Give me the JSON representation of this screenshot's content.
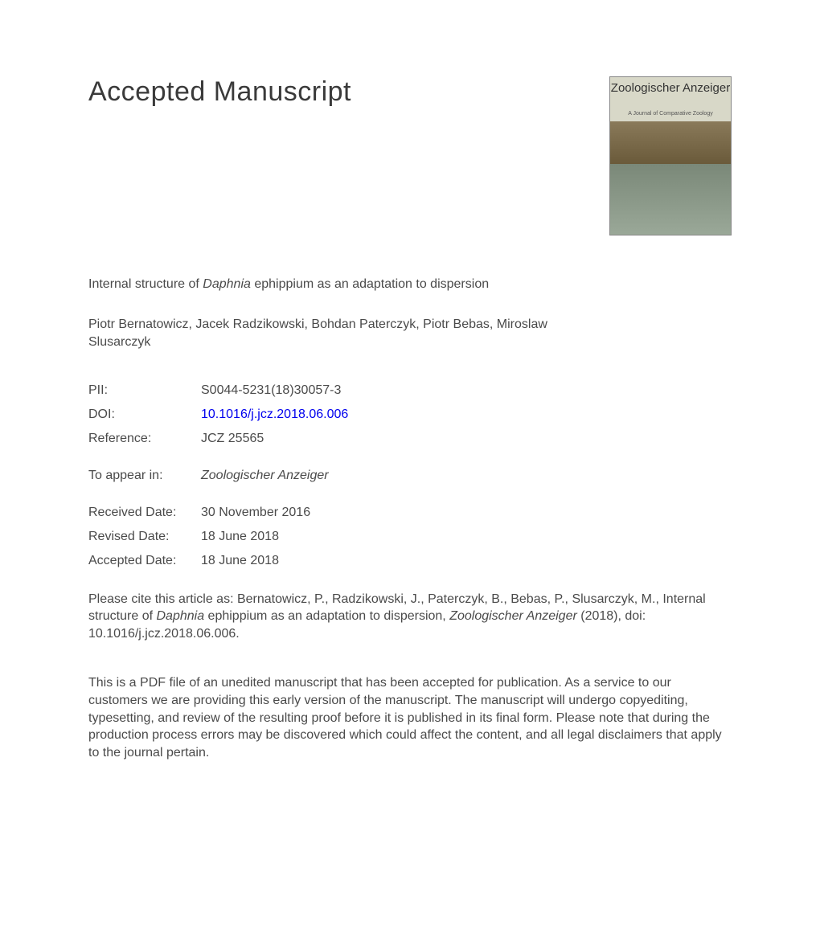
{
  "heading": "Accepted Manuscript",
  "journalCover": {
    "title": "Zoologischer Anzeiger",
    "subtitle": "A Journal of Comparative Zoology"
  },
  "title": {
    "prefix": "Internal structure of ",
    "italic": "Daphnia",
    "suffix": " ephippium as an adaptation to dispersion"
  },
  "authors": "Piotr Bernatowicz, Jacek Radzikowski, Bohdan Paterczyk, Piotr Bebas, Miroslaw Slusarczyk",
  "meta": {
    "pii": {
      "label": "PII:",
      "value": "S0044-5231(18)30057-3"
    },
    "doi": {
      "label": "DOI:",
      "value": "10.1016/j.jcz.2018.06.006"
    },
    "reference": {
      "label": "Reference:",
      "value": "JCZ 25565"
    },
    "toAppear": {
      "label": "To appear in:",
      "value": "Zoologischer Anzeiger"
    },
    "received": {
      "label": "Received Date:",
      "value": "30 November 2016"
    },
    "revised": {
      "label": "Revised Date:",
      "value": "18 June 2018"
    },
    "accepted": {
      "label": "Accepted Date:",
      "value": "18 June 2018"
    }
  },
  "citation": {
    "prefix": "Please cite this article as: Bernatowicz, P., Radzikowski, J., Paterczyk, B., Bebas, P., Slusarczyk, M., Internal structure of ",
    "italic1": "Daphnia",
    "mid": " ephippium as an adaptation to dispersion, ",
    "italic2": "Zoologischer Anzeiger",
    "suffix": " (2018), doi: 10.1016/j.jcz.2018.06.006."
  },
  "disclaimer": "This is a PDF file of an unedited manuscript that has been accepted for publication. As a service to our customers we are providing this early version of the manuscript. The manuscript will undergo copyediting, typesetting, and review of the resulting proof before it is published in its final form. Please note that during the production process errors may be discovered which could affect the content, and all legal disclaimers that apply to the journal pertain.",
  "colors": {
    "text": "#4a4a4a",
    "link": "#0000ee",
    "background": "#ffffff"
  },
  "typography": {
    "heading_fontsize": 34,
    "body_fontsize": 16,
    "font_family": "Arial"
  }
}
